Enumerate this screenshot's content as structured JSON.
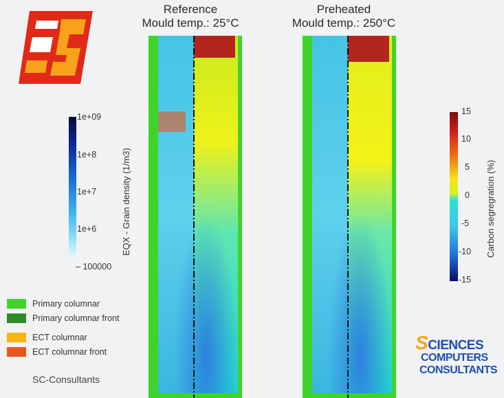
{
  "panels": [
    {
      "title_line1": "Reference",
      "title_line2": "Mould temp.: 25°C"
    },
    {
      "title_line1": "Preheated",
      "title_line2": "Mould temp.: 250°C"
    }
  ],
  "grain_colorbar": {
    "title": "EQX - Grain density (1/m3)",
    "ticks": [
      "1e+09",
      "1e+8",
      "1e+7",
      "1e+6",
      "100000"
    ]
  },
  "segregation_colorbar": {
    "title": "Carbon segregration (%)",
    "ticks": [
      "15",
      "10",
      "5",
      "0",
      "-5",
      "-10",
      "-15"
    ]
  },
  "legend": [
    {
      "label": "Primary columnar",
      "color": "#3fd42a"
    },
    {
      "label": "Primary columnar front",
      "color": "#2e8b2a"
    },
    {
      "label": "ECT columnar",
      "color": "#f7b50f"
    },
    {
      "label": "ECT columnar front",
      "color": "#e8561c"
    }
  ],
  "company_text": "SC-Consultants",
  "brand": {
    "line1": "CIENCES",
    "line1_initial": "S",
    "line2": "COMPUTERS",
    "line3": "CONSULTANTS"
  }
}
